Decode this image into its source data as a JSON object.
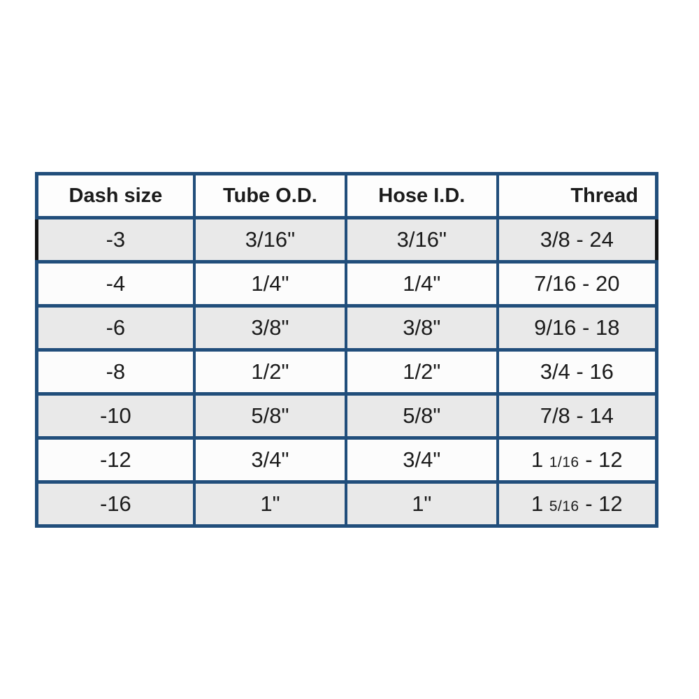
{
  "theme": {
    "page_bg": "#ffffff",
    "border_color": "#214e7b",
    "highlight_color": "#141414",
    "header_bg": "#fdfdfd",
    "row_bg": "#fcfcfc",
    "row_alt_bg": "#e9e9e9",
    "text_color": "#1b1b1b"
  },
  "chart_data": {
    "type": "table",
    "title": "",
    "columns": [
      "Dash size",
      "Tube O.D.",
      "Hose I.D.",
      "Thread"
    ],
    "rows": [
      [
        "-3",
        "3/16\"",
        "3/16\"",
        "3/8 - 24"
      ],
      [
        "-4",
        "1/4\"",
        "1/4\"",
        "7/16 - 20"
      ],
      [
        "-6",
        "3/8\"",
        "3/8\"",
        "9/16 - 18"
      ],
      [
        "-8",
        "1/2\"",
        "1/2\"",
        "3/4 - 16"
      ],
      [
        "-10",
        "5/8\"",
        "5/8\"",
        "7/8 - 14"
      ],
      [
        "-12",
        "3/4\"",
        "3/4\"",
        "1 1/16 - 12"
      ],
      [
        "-16",
        "1\"",
        "1\"",
        "1 5/16 - 12"
      ]
    ]
  },
  "table": {
    "columns": [
      {
        "label": "Dash size",
        "align": "center"
      },
      {
        "label": "Tube O.D.",
        "align": "center"
      },
      {
        "label": "Hose I.D.",
        "align": "center"
      },
      {
        "label": "Thread",
        "align": "right"
      }
    ],
    "rows": [
      {
        "shaded": true,
        "highlighted": true,
        "cells": [
          [
            {
              "t": "-3"
            }
          ],
          [
            {
              "t": "3/16\""
            }
          ],
          [
            {
              "t": "3/16\""
            }
          ],
          [
            {
              "t": "3/8 - 24"
            }
          ]
        ]
      },
      {
        "shaded": false,
        "highlighted": false,
        "cells": [
          [
            {
              "t": "-4"
            }
          ],
          [
            {
              "t": "1/4\""
            }
          ],
          [
            {
              "t": "1/4\""
            }
          ],
          [
            {
              "t": "7/16 - 20"
            }
          ]
        ]
      },
      {
        "shaded": true,
        "highlighted": false,
        "cells": [
          [
            {
              "t": "-6"
            }
          ],
          [
            {
              "t": "3/8\""
            }
          ],
          [
            {
              "t": "3/8\""
            }
          ],
          [
            {
              "t": "9/16 - 18"
            }
          ]
        ]
      },
      {
        "shaded": false,
        "highlighted": false,
        "cells": [
          [
            {
              "t": "-8"
            }
          ],
          [
            {
              "t": "1/2\""
            }
          ],
          [
            {
              "t": "1/2\""
            }
          ],
          [
            {
              "t": "3/4 - 16"
            }
          ]
        ]
      },
      {
        "shaded": true,
        "highlighted": false,
        "cells": [
          [
            {
              "t": "-10"
            }
          ],
          [
            {
              "t": "5/8\""
            }
          ],
          [
            {
              "t": "5/8\""
            }
          ],
          [
            {
              "t": "7/8 - 14"
            }
          ]
        ]
      },
      {
        "shaded": false,
        "highlighted": false,
        "cells": [
          [
            {
              "t": "-12"
            }
          ],
          [
            {
              "t": "3/4\""
            }
          ],
          [
            {
              "t": "3/4\""
            }
          ],
          [
            {
              "t": "1 "
            },
            {
              "t": "1/16",
              "small": true
            },
            {
              "t": " - 12"
            }
          ]
        ]
      },
      {
        "shaded": true,
        "highlighted": false,
        "cells": [
          [
            {
              "t": "-16"
            }
          ],
          [
            {
              "t": "1\""
            }
          ],
          [
            {
              "t": "1\""
            }
          ],
          [
            {
              "t": "1 "
            },
            {
              "t": "5/16",
              "small": true
            },
            {
              "t": " - 12"
            }
          ]
        ]
      }
    ]
  }
}
